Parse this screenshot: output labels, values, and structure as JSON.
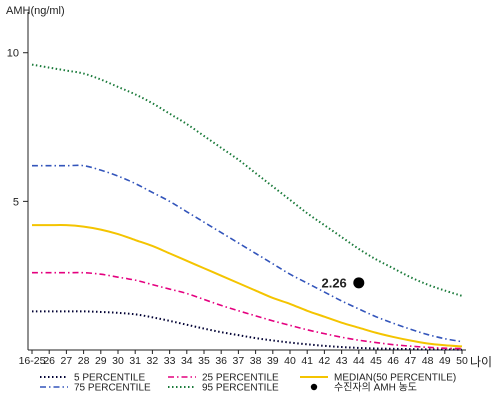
{
  "chart_data": {
    "type": "line",
    "ylabel": "AMH(ng/ml)",
    "xlabel": "나이",
    "ylim": [
      0,
      11
    ],
    "yticks": [
      5,
      10
    ],
    "categories": [
      "16-25",
      "26",
      "27",
      "28",
      "29",
      "30",
      "31",
      "32",
      "33",
      "34",
      "35",
      "36",
      "37",
      "38",
      "39",
      "40",
      "41",
      "42",
      "43",
      "44",
      "45",
      "46",
      "47",
      "48",
      "49",
      "50"
    ],
    "series": [
      {
        "name": "5 PERCENTILE",
        "color": "#000033",
        "dash": "dot",
        "values": [
          1.3,
          1.3,
          1.3,
          1.3,
          1.28,
          1.25,
          1.2,
          1.1,
          0.98,
          0.85,
          0.72,
          0.6,
          0.5,
          0.4,
          0.32,
          0.25,
          0.19,
          0.14,
          0.1,
          0.07,
          0.05,
          0.04,
          0.03,
          0.02,
          0.02,
          0.01
        ]
      },
      {
        "name": "25 PERCENTILE",
        "color": "#e4007f",
        "dash": "dashdot",
        "values": [
          2.6,
          2.6,
          2.6,
          2.6,
          2.55,
          2.45,
          2.35,
          2.2,
          2.05,
          1.9,
          1.7,
          1.5,
          1.32,
          1.15,
          0.98,
          0.83,
          0.68,
          0.55,
          0.43,
          0.33,
          0.25,
          0.18,
          0.13,
          0.09,
          0.06,
          0.05
        ]
      },
      {
        "name": "MEDIAN(50 PERCENTILE)",
        "color": "#f4c400",
        "dash": "solid",
        "values": [
          4.2,
          4.2,
          4.2,
          4.15,
          4.05,
          3.9,
          3.7,
          3.5,
          3.25,
          3.0,
          2.75,
          2.5,
          2.25,
          2.0,
          1.75,
          1.55,
          1.32,
          1.12,
          0.92,
          0.75,
          0.58,
          0.44,
          0.32,
          0.22,
          0.16,
          0.12
        ]
      },
      {
        "name": "75 PERCENTILE",
        "color": "#3355bb",
        "dash": "dashdot",
        "values": [
          6.2,
          6.2,
          6.2,
          6.2,
          6.05,
          5.85,
          5.6,
          5.3,
          5.0,
          4.65,
          4.3,
          3.95,
          3.6,
          3.25,
          2.9,
          2.55,
          2.25,
          1.95,
          1.65,
          1.38,
          1.12,
          0.9,
          0.7,
          0.52,
          0.38,
          0.28
        ]
      },
      {
        "name": "95 PERCENTILE",
        "color": "#1a7a3a",
        "dash": "dot",
        "values": [
          9.6,
          9.5,
          9.4,
          9.3,
          9.1,
          8.85,
          8.6,
          8.3,
          7.95,
          7.6,
          7.2,
          6.8,
          6.4,
          5.95,
          5.5,
          5.05,
          4.6,
          4.2,
          3.8,
          3.4,
          3.05,
          2.75,
          2.45,
          2.2,
          2.0,
          1.82
        ]
      }
    ],
    "marker": {
      "label": "수진자의 AMH 농도",
      "x": "44",
      "value": 2.26,
      "value_label": "2.26",
      "color": "#000000"
    },
    "legend": {
      "position": "bottom",
      "columns": 3
    },
    "grid": false
  }
}
